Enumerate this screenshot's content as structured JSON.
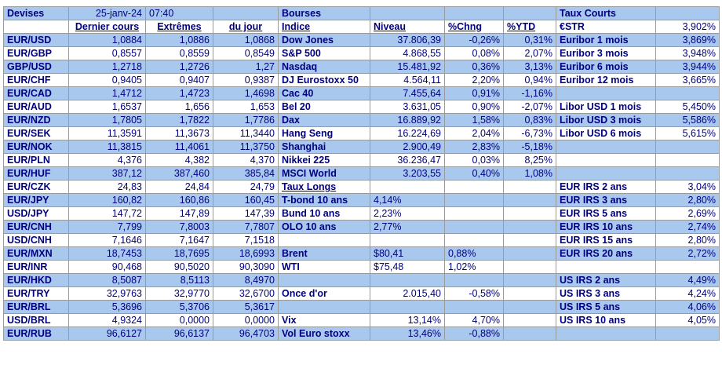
{
  "header": {
    "devises": "Devises",
    "date": "25-janv-24",
    "time": "07:40",
    "bourses": "Bourses",
    "taux_courts": "Taux Courts",
    "estr_label": "€STR",
    "estr_value": "3,902%"
  },
  "columns": {
    "dernier": "Dernier cours",
    "extremes": "Extrêmes",
    "dujour": "du jour",
    "indice": "Indice",
    "niveau": "Niveau",
    "chng": "%Chng",
    "ytd": "%YTD"
  },
  "rows": [
    {
      "pair": "EUR/USD",
      "last": "1,0884",
      "high": "1,0886",
      "low": "1,0868",
      "index": "Dow Jones",
      "level": "37.806,39",
      "chng": "-0,26%",
      "ytd": "0,31%",
      "rate": "Euribor 1 mois",
      "rate_val": "3,869%"
    },
    {
      "pair": "EUR/GBP",
      "last": "0,8557",
      "high": "0,8559",
      "low": "0,8549",
      "index": "S&P 500",
      "level": "4.868,55",
      "chng": "0,08%",
      "ytd": "2,07%",
      "rate": "Euribor 3 mois",
      "rate_val": "3,948%"
    },
    {
      "pair": "GBP/USD",
      "last": "1,2718",
      "high": "1,2726",
      "low": "1,27",
      "index": "Nasdaq",
      "level": "15.481,92",
      "chng": "0,36%",
      "ytd": "3,13%",
      "rate": "Euribor 6 mois",
      "rate_val": "3,944%"
    },
    {
      "pair": "EUR/CHF",
      "last": "0,9405",
      "high": "0,9407",
      "low": "0,9387",
      "index": "DJ Eurostoxx 50",
      "level": "4.564,11",
      "chng": "2,20%",
      "ytd": "0,94%",
      "rate": "Euribor 12 mois",
      "rate_val": "3,665%"
    },
    {
      "pair": "EUR/CAD",
      "last": "1,4712",
      "high": "1,4723",
      "low": "1,4698",
      "index": "Cac 40",
      "level": "7.455,64",
      "chng": "0,91%",
      "ytd": "-1,16%",
      "rate": "",
      "rate_val": ""
    },
    {
      "pair": "EUR/AUD",
      "last": "1,6537",
      "high": "1,656",
      "low": "1,653",
      "index": "Bel 20",
      "level": "3.631,05",
      "chng": "0,90%",
      "ytd": "-2,07%",
      "rate": "Libor USD 1 mois",
      "rate_val": "5,450%"
    },
    {
      "pair": "EUR/NZD",
      "last": "1,7805",
      "high": "1,7822",
      "low": "1,7786",
      "index": "Dax",
      "level": "16.889,92",
      "chng": "1,58%",
      "ytd": "0,83%",
      "rate": "Libor USD 3 mois",
      "rate_val": "5,586%"
    },
    {
      "pair": "EUR/SEK",
      "last": "11,3591",
      "high": "11,3673",
      "low": "11,3440",
      "index": "Hang Seng",
      "level": "16.224,69",
      "chng": "2,04%",
      "ytd": "-6,73%",
      "rate": "Libor USD 6 mois",
      "rate_val": "5,615%"
    },
    {
      "pair": "EUR/NOK",
      "last": "11,3815",
      "high": "11,4061",
      "low": "11,3750",
      "index": "Shanghai",
      "level": "2.900,49",
      "chng": "2,83%",
      "ytd": "-5,18%",
      "rate": "",
      "rate_val": ""
    },
    {
      "pair": "EUR/PLN",
      "last": "4,376",
      "high": "4,382",
      "low": "4,370",
      "index": "Nikkei 225",
      "level": "36.236,47",
      "chng": "0,03%",
      "ytd": "8,25%",
      "rate": "",
      "rate_val": ""
    },
    {
      "pair": "EUR/HUF",
      "last": "387,12",
      "high": "387,460",
      "low": "385,84",
      "index": "MSCI World",
      "level": "3.203,55",
      "chng": "0,40%",
      "ytd": "1,08%",
      "rate": "",
      "rate_val": ""
    },
    {
      "pair": "EUR/CZK",
      "last": "24,83",
      "high": "24,84",
      "low": "24,79",
      "index": "Taux Longs",
      "level": "",
      "chng": "",
      "ytd": "",
      "rate": "EUR IRS 2 ans",
      "rate_val": "3,04%"
    },
    {
      "pair": "EUR/JPY",
      "last": "160,82",
      "high": "160,86",
      "low": "160,45",
      "index": "T-bond 10 ans",
      "level": "4,14%",
      "chng": "",
      "ytd": "",
      "rate": "EUR IRS 3 ans",
      "rate_val": "2,80%"
    },
    {
      "pair": "USD/JPY",
      "last": "147,72",
      "high": "147,89",
      "low": "147,39",
      "index": "Bund 10 ans",
      "level": "2,23%",
      "chng": "",
      "ytd": "",
      "rate": "EUR IRS 5 ans",
      "rate_val": "2,69%"
    },
    {
      "pair": "EUR/CNH",
      "last": "7,799",
      "high": "7,8003",
      "low": "7,7807",
      "index": "OLO 10 ans",
      "level": "2,77%",
      "chng": "",
      "ytd": "",
      "rate": "EUR IRS 10 ans",
      "rate_val": "2,74%"
    },
    {
      "pair": "USD/CNH",
      "last": "7,1646",
      "high": "7,1647",
      "low": "7,1518",
      "index": "",
      "level": "",
      "chng": "",
      "ytd": "",
      "rate": "EUR IRS 15 ans",
      "rate_val": "2,80%"
    },
    {
      "pair": "EUR/MXN",
      "last": "18,7453",
      "high": "18,7695",
      "low": "18,6993",
      "index": "Brent",
      "level": "$80,41",
      "chng": "0,88%",
      "ytd": "",
      "rate": "EUR IRS 20 ans",
      "rate_val": "2,72%"
    },
    {
      "pair": "EUR/INR",
      "last": "90,468",
      "high": "90,5020",
      "low": "90,3090",
      "index": "WTI",
      "level": "$75,48",
      "chng": "1,02%",
      "ytd": "",
      "rate": "",
      "rate_val": ""
    },
    {
      "pair": "EUR/HKD",
      "last": "8,5087",
      "high": "8,5113",
      "low": "8,4970",
      "index": "",
      "level": "",
      "chng": "",
      "ytd": "",
      "rate": "US IRS 2 ans",
      "rate_val": "4,49%"
    },
    {
      "pair": "EUR/TRY",
      "last": "32,9763",
      "high": "32,9770",
      "low": "32,6700",
      "index": "Once d'or",
      "level": "2.015,40",
      "chng": "-0,58%",
      "ytd": "",
      "rate": "US IRS 3 ans",
      "rate_val": "4,24%"
    },
    {
      "pair": "EUR/BRL",
      "last": "5,3696",
      "high": "5,3706",
      "low": "5,3617",
      "index": "",
      "level": "",
      "chng": "",
      "ytd": "",
      "rate": "US IRS 5 ans",
      "rate_val": "4,06%"
    },
    {
      "pair": "USD/BRL",
      "last": "4,9324",
      "high": "0,0000",
      "low": "0,0000",
      "index": "Vix",
      "level": "13,14%",
      "chng": "4,70%",
      "ytd": "",
      "rate": "US IRS 10 ans",
      "rate_val": "4,05%"
    },
    {
      "pair": "EUR/RUB",
      "last": "96,6127",
      "high": "96,6137",
      "low": "96,4703",
      "index": "Vol Euro stoxx",
      "level": "13,46%",
      "chng": "-0,88%",
      "ytd": "",
      "rate": "",
      "rate_val": ""
    }
  ]
}
